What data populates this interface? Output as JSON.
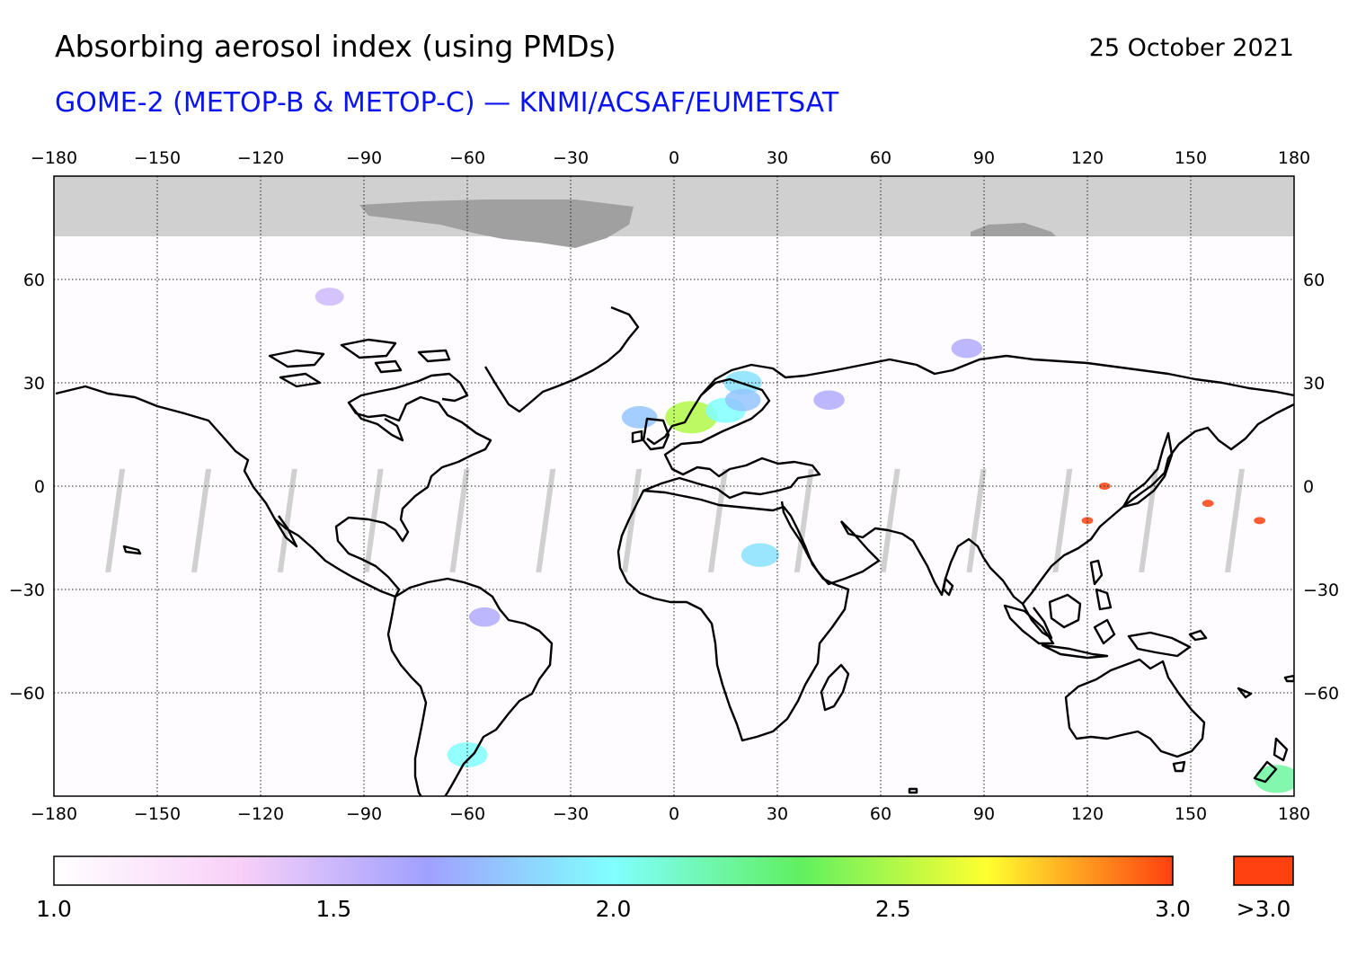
{
  "header": {
    "title": "Absorbing aerosol index (using PMDs)",
    "date": "25 October 2021",
    "subtitle": "GOME-2 (METOP-B & METOP-C) — KNMI/ACSAF/EUMETSAT"
  },
  "map": {
    "projection": "equirectangular",
    "lon_range": [
      -180,
      180
    ],
    "lat_range": [
      -90,
      90
    ],
    "lon_ticks": [
      -180,
      -150,
      -120,
      -90,
      -60,
      -30,
      0,
      30,
      60,
      90,
      120,
      150,
      180
    ],
    "lat_ticks": [
      60,
      30,
      0,
      -30,
      -60
    ],
    "lon_tick_labels": [
      "−180",
      "−150",
      "−120",
      "−90",
      "−60",
      "−30",
      "0",
      "30",
      "60",
      "90",
      "120",
      "150",
      "180"
    ],
    "lat_tick_labels": [
      "60",
      "30",
      "0",
      "−30",
      "−60"
    ],
    "grid": "dotted",
    "no_data_color": "#d0d0d0",
    "land_ice_color": "#a0a0a0",
    "coastline_color": "#000000"
  },
  "colorbar": {
    "min": 1.0,
    "max": 3.0,
    "tick_values": [
      1.0,
      1.5,
      2.0,
      2.5,
      3.0
    ],
    "tick_labels": [
      "1.0",
      "1.5",
      "2.0",
      "2.5",
      "3.0"
    ],
    "overflow_label": ">3.0",
    "overflow_color": "#ff4010",
    "colors": [
      "#ffffff",
      "#f8d0f8",
      "#a0a0ff",
      "#80ffff",
      "#60f060",
      "#ffff30",
      "#ff4010"
    ]
  },
  "chart_data": {
    "type": "heatmap",
    "title": "Absorbing aerosol index (using PMDs)",
    "subtitle": "GOME-2 (METOP-B & METOP-C) — KNMI/ACSAF/EUMETSAT",
    "date": "25 October 2021",
    "x_range": [
      -180,
      180
    ],
    "y_range": [
      -90,
      90
    ],
    "value_range": [
      1.0,
      3.0
    ],
    "aerosol_hotspots": [
      {
        "lon": 5,
        "lat": 20,
        "value": 2.5
      },
      {
        "lon": 15,
        "lat": 22,
        "value": 2.0
      },
      {
        "lon": 20,
        "lat": 30,
        "value": 1.9
      },
      {
        "lon": -10,
        "lat": 20,
        "value": 1.8
      },
      {
        "lon": 20,
        "lat": 25,
        "value": 1.8
      },
      {
        "lon": 45,
        "lat": 25,
        "value": 1.6
      },
      {
        "lon": 85,
        "lat": 40,
        "value": 1.6
      },
      {
        "lon": 25,
        "lat": -20,
        "value": 1.9
      },
      {
        "lon": 125,
        "lat": 0,
        "value": 3.2
      },
      {
        "lon": 120,
        "lat": -10,
        "value": 3.2
      },
      {
        "lon": 155,
        "lat": -5,
        "value": 3.1
      },
      {
        "lon": 170,
        "lat": -10,
        "value": 3.1
      },
      {
        "lon": -55,
        "lat": -38,
        "value": 1.6
      },
      {
        "lon": -60,
        "lat": -78,
        "value": 2.0
      },
      {
        "lon": 175,
        "lat": -85,
        "value": 2.2
      },
      {
        "lon": -100,
        "lat": 55,
        "value": 1.5
      }
    ]
  }
}
